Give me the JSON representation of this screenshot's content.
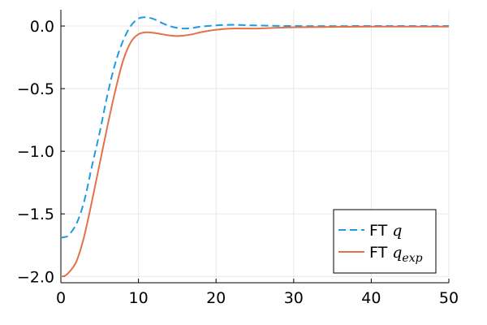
{
  "chart_data": {
    "type": "line",
    "title": "",
    "xlabel": "",
    "ylabel": "",
    "xlim": [
      0,
      50
    ],
    "ylim": [
      -2.05,
      0.13
    ],
    "x_ticks": [
      0,
      10,
      20,
      30,
      40,
      50
    ],
    "x_tick_labels": [
      "0",
      "10",
      "20",
      "30",
      "40",
      "50"
    ],
    "y_ticks": [
      0.0,
      -0.5,
      -1.0,
      -1.5,
      -2.0
    ],
    "y_tick_labels": [
      "0.0",
      "−0.5",
      "−1.0",
      "−1.5",
      "−2.0"
    ],
    "grid": true,
    "legend_position": "bottom-right",
    "series": [
      {
        "name": "FT q",
        "legend_main": "FT ",
        "legend_symbol": "q",
        "legend_subscript": "",
        "color": "#1f9be2",
        "style": "dashed",
        "points": [
          [
            0,
            -1.69
          ],
          [
            0.5,
            -1.685
          ],
          [
            1,
            -1.67
          ],
          [
            2,
            -1.58
          ],
          [
            3,
            -1.4
          ],
          [
            4,
            -1.12
          ],
          [
            5,
            -0.85
          ],
          [
            6,
            -0.55
          ],
          [
            7,
            -0.3
          ],
          [
            8,
            -0.12
          ],
          [
            9,
            0.0
          ],
          [
            10,
            0.06
          ],
          [
            11,
            0.07
          ],
          [
            12,
            0.055
          ],
          [
            13,
            0.025
          ],
          [
            14,
            0.0
          ],
          [
            15,
            -0.015
          ],
          [
            16,
            -0.02
          ],
          [
            17,
            -0.015
          ],
          [
            18,
            -0.005
          ],
          [
            20,
            0.005
          ],
          [
            22,
            0.01
          ],
          [
            25,
            0.005
          ],
          [
            30,
            0.0
          ],
          [
            40,
            0.0
          ],
          [
            50,
            0.0
          ]
        ]
      },
      {
        "name": "FT q_exp",
        "legend_main": "FT ",
        "legend_symbol": "q",
        "legend_subscript": "exp",
        "color": "#e2724a",
        "style": "solid",
        "points": [
          [
            0,
            -2.0
          ],
          [
            0.5,
            -1.995
          ],
          [
            1,
            -1.97
          ],
          [
            2,
            -1.88
          ],
          [
            3,
            -1.68
          ],
          [
            4,
            -1.4
          ],
          [
            5,
            -1.1
          ],
          [
            6,
            -0.8
          ],
          [
            7,
            -0.52
          ],
          [
            8,
            -0.28
          ],
          [
            9,
            -0.13
          ],
          [
            10,
            -0.065
          ],
          [
            11,
            -0.05
          ],
          [
            12,
            -0.055
          ],
          [
            13,
            -0.065
          ],
          [
            14,
            -0.075
          ],
          [
            15,
            -0.08
          ],
          [
            16,
            -0.075
          ],
          [
            17,
            -0.065
          ],
          [
            18,
            -0.05
          ],
          [
            20,
            -0.03
          ],
          [
            22,
            -0.02
          ],
          [
            25,
            -0.02
          ],
          [
            30,
            -0.01
          ],
          [
            40,
            -0.005
          ],
          [
            50,
            -0.005
          ]
        ]
      }
    ]
  }
}
